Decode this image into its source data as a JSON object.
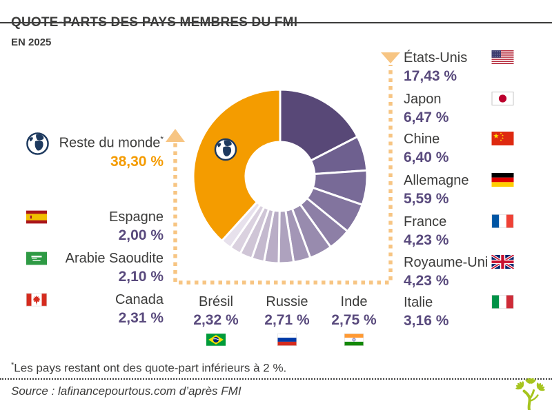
{
  "header": {
    "title": "QUOTE-PARTS DES PAYS MEMBRES DU FMI",
    "subtitle": "EN 2025"
  },
  "chart_data": {
    "type": "pie",
    "style": "donut",
    "title": "Quote-parts des pays membres du FMI en 2025",
    "unit": "%",
    "start_angle_deg": 0,
    "direction": "clockwise",
    "segments": [
      {
        "label": "États-Unis",
        "value": 17.43,
        "display": "17,43 %",
        "color": "#584877",
        "flag": "us"
      },
      {
        "label": "Japon",
        "value": 6.47,
        "display": "6,47 %",
        "color": "#6E608F",
        "flag": "jp"
      },
      {
        "label": "Chine",
        "value": 6.4,
        "display": "6,40 %",
        "color": "#786A97",
        "flag": "cn"
      },
      {
        "label": "Allemagne",
        "value": 5.59,
        "display": "5,59 %",
        "color": "#82749E",
        "flag": "de"
      },
      {
        "label": "France",
        "value": 4.23,
        "display": "4,23 %",
        "color": "#8D7FA6",
        "flag": "fr"
      },
      {
        "label": "Royaume-Uni",
        "value": 4.23,
        "display": "4,23 %",
        "color": "#988BAE",
        "flag": "gb"
      },
      {
        "label": "Italie",
        "value": 3.16,
        "display": "3,16 %",
        "color": "#A396B6",
        "flag": "it"
      },
      {
        "label": "Inde",
        "value": 2.75,
        "display": "2,75 %",
        "color": "#AEA2BE",
        "flag": "in"
      },
      {
        "label": "Russie",
        "value": 2.71,
        "display": "2,71 %",
        "color": "#B9ADC6",
        "flag": "ru"
      },
      {
        "label": "Brésil",
        "value": 2.32,
        "display": "2,32 %",
        "color": "#C4B9CE",
        "flag": "br"
      },
      {
        "label": "Canada",
        "value": 2.31,
        "display": "2,31 %",
        "color": "#CFC5D6",
        "flag": "ca"
      },
      {
        "label": "Arabie Saoudite",
        "value": 2.1,
        "display": "2,10 %",
        "color": "#DAD1DF",
        "flag": "sa"
      },
      {
        "label": "Espagne",
        "value": 2.0,
        "display": "2,00 %",
        "color": "#E7E1EC",
        "flag": "es"
      },
      {
        "label": "Reste du monde",
        "value": 38.3,
        "display": "38,30 %",
        "color": "#F49C00",
        "flag": "globe",
        "note_mark": "*"
      }
    ]
  },
  "footnote": {
    "mark": "*",
    "text": "Les pays restant ont des quote-part inférieurs à 2 %."
  },
  "source": "Source : lafinancepourtous.com d’après FMI",
  "colors": {
    "accent_orange": "#F49B00",
    "value_purple": "#594A7D",
    "text_dark": "#3C3C3B",
    "connector": "#F7C583",
    "globe_navy": "#1E3A5F",
    "logo_green": "#A6C41E"
  }
}
